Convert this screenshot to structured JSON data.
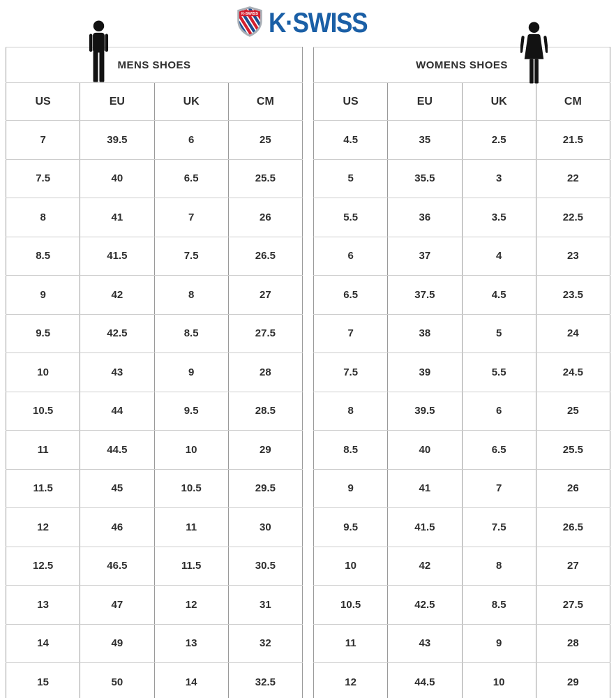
{
  "logo": {
    "wordmark": "K·SWISS",
    "shield_text": "K-SWISS",
    "colors": {
      "brand_blue": "#1a5fa6",
      "logo_red": "#d22030",
      "stripe_blue": "#1d4f91",
      "shield_silver": "#a9afb6"
    }
  },
  "chart_data": [
    {
      "type": "table",
      "title": "MENS SHOES",
      "icon": "male-figure-icon",
      "columns": [
        "US",
        "EU",
        "UK",
        "CM"
      ],
      "rows": [
        [
          "7",
          "39.5",
          "6",
          "25"
        ],
        [
          "7.5",
          "40",
          "6.5",
          "25.5"
        ],
        [
          "8",
          "41",
          "7",
          "26"
        ],
        [
          "8.5",
          "41.5",
          "7.5",
          "26.5"
        ],
        [
          "9",
          "42",
          "8",
          "27"
        ],
        [
          "9.5",
          "42.5",
          "8.5",
          "27.5"
        ],
        [
          "10",
          "43",
          "9",
          "28"
        ],
        [
          "10.5",
          "44",
          "9.5",
          "28.5"
        ],
        [
          "11",
          "44.5",
          "10",
          "29"
        ],
        [
          "11.5",
          "45",
          "10.5",
          "29.5"
        ],
        [
          "12",
          "46",
          "11",
          "30"
        ],
        [
          "12.5",
          "46.5",
          "11.5",
          "30.5"
        ],
        [
          "13",
          "47",
          "12",
          "31"
        ],
        [
          "14",
          "49",
          "13",
          "32"
        ],
        [
          "15",
          "50",
          "14",
          "32.5"
        ]
      ]
    },
    {
      "type": "table",
      "title": "WOMENS SHOES",
      "icon": "female-figure-icon",
      "columns": [
        "US",
        "EU",
        "UK",
        "CM"
      ],
      "rows": [
        [
          "4.5",
          "35",
          "2.5",
          "21.5"
        ],
        [
          "5",
          "35.5",
          "3",
          "22"
        ],
        [
          "5.5",
          "36",
          "3.5",
          "22.5"
        ],
        [
          "6",
          "37",
          "4",
          "23"
        ],
        [
          "6.5",
          "37.5",
          "4.5",
          "23.5"
        ],
        [
          "7",
          "38",
          "5",
          "24"
        ],
        [
          "7.5",
          "39",
          "5.5",
          "24.5"
        ],
        [
          "8",
          "39.5",
          "6",
          "25"
        ],
        [
          "8.5",
          "40",
          "6.5",
          "25.5"
        ],
        [
          "9",
          "41",
          "7",
          "26"
        ],
        [
          "9.5",
          "41.5",
          "7.5",
          "26.5"
        ],
        [
          "10",
          "42",
          "8",
          "27"
        ],
        [
          "10.5",
          "42.5",
          "8.5",
          "27.5"
        ],
        [
          "11",
          "43",
          "9",
          "28"
        ],
        [
          "12",
          "44.5",
          "10",
          "29"
        ]
      ]
    }
  ]
}
